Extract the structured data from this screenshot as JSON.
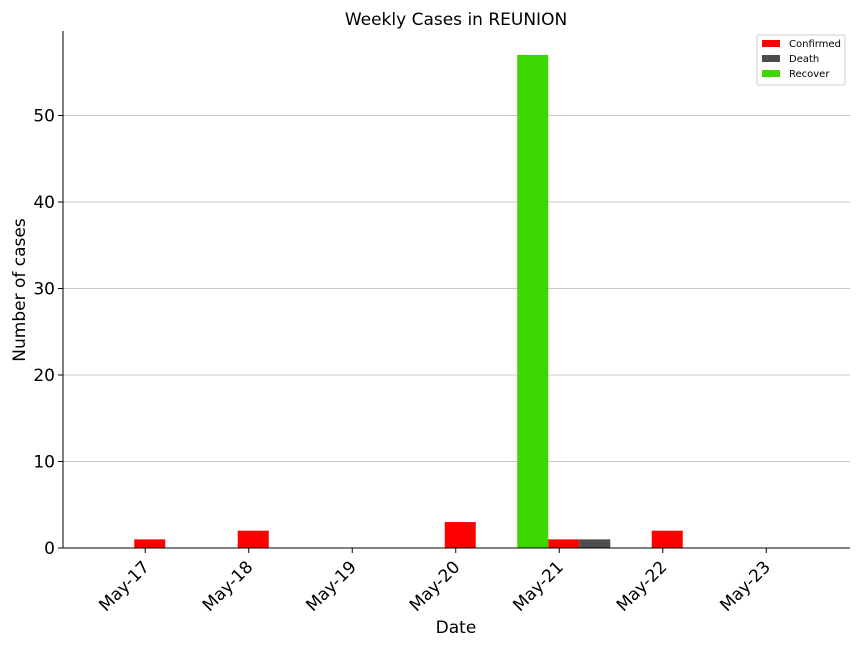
{
  "chart_data": {
    "type": "bar",
    "title": "Weekly Cases in REUNION",
    "xlabel": "Date",
    "ylabel": "Number of cases",
    "categories": [
      "May-17",
      "May-18",
      "May-19",
      "May-20",
      "May-21",
      "May-22",
      "May-23"
    ],
    "series": [
      {
        "name": "Confirmed",
        "color": "#ff0000",
        "values": [
          1,
          2,
          0,
          3,
          1,
          2,
          0
        ]
      },
      {
        "name": "Death",
        "color": "#4d4d4d",
        "values": [
          0,
          0,
          0,
          0,
          1,
          0,
          0
        ]
      },
      {
        "name": "Recover",
        "color": "#3dd600",
        "values": [
          0,
          0,
          0,
          0,
          57,
          0,
          0
        ]
      }
    ],
    "ylim": [
      0,
      60
    ],
    "yticks": [
      0,
      10,
      20,
      30,
      40,
      50
    ],
    "grid": "horizontal",
    "legend_position": "top-right"
  }
}
